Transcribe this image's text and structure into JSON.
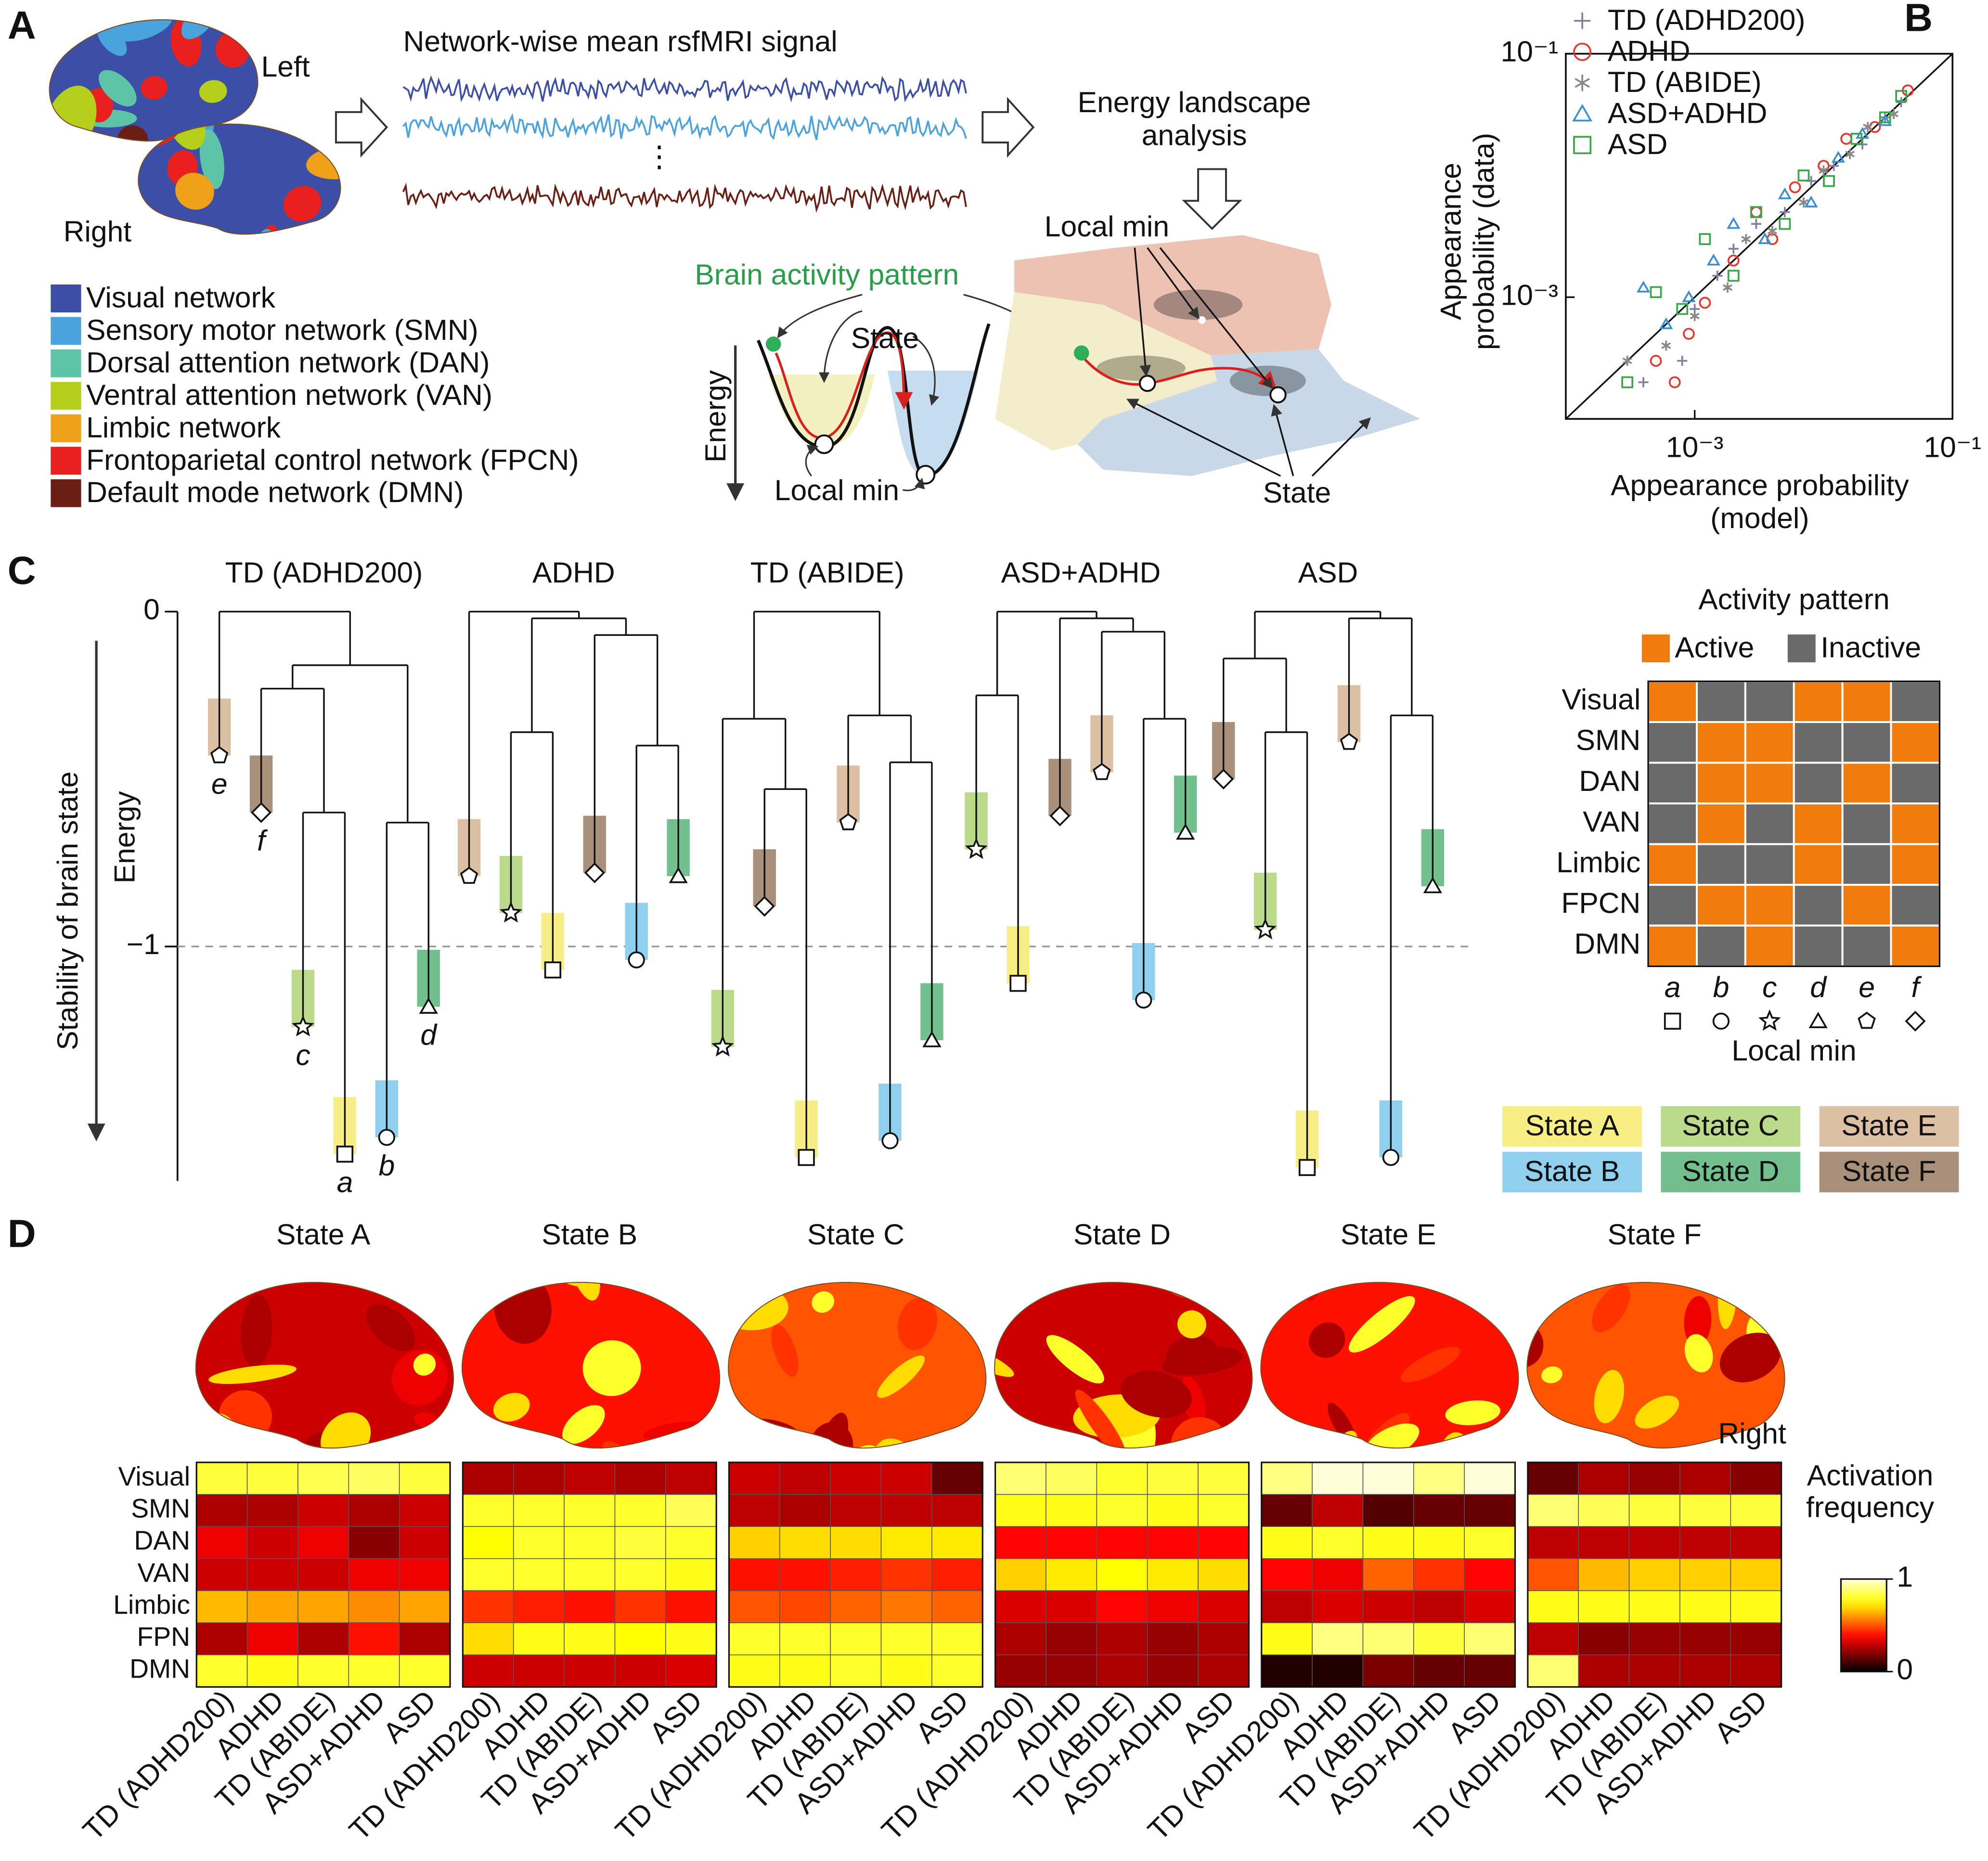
{
  "panel_labels": [
    "A",
    "B",
    "C",
    "D"
  ],
  "panel_a": {
    "hemispheres": [
      "Left",
      "Right"
    ],
    "signal_title": "Network-wise mean rsfMRI signal",
    "analysis": [
      "Energy landscape",
      "analysis"
    ],
    "pattern_label": "Brain activity pattern",
    "local_min": [
      "Local min",
      "Local min"
    ],
    "state": [
      "State",
      "State"
    ],
    "energy_label": "Energy",
    "networks": [
      {
        "name": "Visual network",
        "color": "#3c4fa6"
      },
      {
        "name": "Sensory motor network (SMN)",
        "color": "#4aa3dc"
      },
      {
        "name": "Dorsal attention network (DAN)",
        "color": "#5ec4a8"
      },
      {
        "name": "Ventral attention network (VAN)",
        "color": "#b5cf1d"
      },
      {
        "name": "Limbic network",
        "color": "#f0a11a"
      },
      {
        "name": "Frontoparietal control network (FPCN)",
        "color": "#e8201e"
      },
      {
        "name": "Default mode network (DMN)",
        "color": "#6b1e14"
      }
    ]
  },
  "chart_data": [
    {
      "type": "scatter",
      "log_x": true,
      "log_y": true,
      "legend": "upper left",
      "xlabel": [
        "Appearance probability",
        "(model)"
      ],
      "ylabel": [
        "Appearance",
        "probability (data)"
      ],
      "xlim": [
        0.0001,
        0.1
      ],
      "ylim": [
        0.0001,
        0.1
      ],
      "xticks": [
        {
          "value": 0.001,
          "label": "10⁻³"
        },
        {
          "value": 0.1,
          "label": "10⁻¹"
        }
      ],
      "yticks": [
        {
          "value": 0.001,
          "label": "10⁻³"
        },
        {
          "value": 0.1,
          "label": "10⁻¹"
        }
      ],
      "series": [
        {
          "name": "TD (ADHD200)",
          "color": "#8080a0",
          "marker": "plus",
          "x": [
            0.0004,
            0.0008,
            0.001,
            0.0015,
            0.002,
            0.003,
            0.005,
            0.008,
            0.012,
            0.02,
            0.03,
            0.04
          ],
          "values": [
            0.0002,
            0.0003,
            0.0008,
            0.0015,
            0.0025,
            0.004,
            0.005,
            0.009,
            0.012,
            0.018,
            0.03,
            0.04
          ]
        },
        {
          "name": "ADHD",
          "color": "#e8372c",
          "marker": "circle",
          "x": [
            0.0005,
            0.0007,
            0.0009,
            0.0012,
            0.002,
            0.003,
            0.004,
            0.006,
            0.01,
            0.015,
            0.025,
            0.045
          ],
          "values": [
            0.0003,
            0.0002,
            0.0005,
            0.0009,
            0.002,
            0.005,
            0.003,
            0.008,
            0.012,
            0.02,
            0.025,
            0.05
          ]
        },
        {
          "name": "TD (ABIDE)",
          "color": "#888888",
          "marker": "asterisk",
          "x": [
            0.0003,
            0.0006,
            0.001,
            0.0018,
            0.0025,
            0.004,
            0.007,
            0.01,
            0.016,
            0.022,
            0.035
          ],
          "values": [
            0.0003,
            0.0004,
            0.0007,
            0.0012,
            0.003,
            0.0035,
            0.006,
            0.011,
            0.015,
            0.025,
            0.032
          ]
        },
        {
          "name": "ASD+ADHD",
          "color": "#3a8fd0",
          "marker": "triangle",
          "x": [
            0.0004,
            0.0006,
            0.0009,
            0.0014,
            0.002,
            0.0035,
            0.005,
            0.008,
            0.013,
            0.02,
            0.03
          ],
          "values": [
            0.0012,
            0.0006,
            0.001,
            0.002,
            0.004,
            0.003,
            0.007,
            0.006,
            0.014,
            0.022,
            0.028
          ]
        },
        {
          "name": "ASD",
          "color": "#3aa84a",
          "marker": "square",
          "x": [
            0.0003,
            0.0005,
            0.0008,
            0.0012,
            0.002,
            0.003,
            0.005,
            0.007,
            0.011,
            0.018,
            0.03,
            0.04
          ],
          "values": [
            0.0002,
            0.0011,
            0.0008,
            0.003,
            0.0015,
            0.005,
            0.004,
            0.01,
            0.009,
            0.02,
            0.03,
            0.045
          ]
        }
      ]
    },
    {
      "type": "dendrogram",
      "ylabel": "Energy",
      "side_label": "Stability of brain state",
      "ylim": [
        -1.7,
        0
      ],
      "yticks": [
        0,
        {
          "value": -1,
          "label": "−1"
        }
      ],
      "refline": -1,
      "states": [
        {
          "name": "State A",
          "color": "#f7ee86"
        },
        {
          "name": "State B",
          "color": "#8fd0ef"
        },
        {
          "name": "State C",
          "color": "#bcda8c"
        },
        {
          "name": "State D",
          "color": "#72c08e"
        },
        {
          "name": "State E",
          "color": "#dcc0a4"
        },
        {
          "name": "State F",
          "color": "#a8907a"
        }
      ],
      "groups": [
        {
          "name": "TD (ADHD200)",
          "show_min_labels": true,
          "leaves": [
            {
              "min": "e",
              "energy": -0.43
            },
            {
              "min": "f",
              "energy": -0.6
            },
            {
              "min": "c",
              "energy": -1.24
            },
            {
              "min": "a",
              "energy": -1.62
            },
            {
              "min": "b",
              "energy": -1.57
            },
            {
              "min": "d",
              "energy": -1.18
            }
          ],
          "merges": [
            {
              "children": [
                2,
                3
              ],
              "energy": -0.6
            },
            {
              "children": [
                4,
                5
              ],
              "energy": -0.63
            },
            {
              "children": [
                1,
                6
              ],
              "energy": -0.23
            },
            {
              "children": [
                8,
                7
              ],
              "energy": -0.16
            },
            {
              "children": [
                0,
                9
              ],
              "energy": 0
            }
          ]
        },
        {
          "name": "ADHD",
          "show_min_labels": false,
          "leaves": [
            {
              "min": "e",
              "energy": -0.79
            },
            {
              "min": "c",
              "energy": -0.9
            },
            {
              "min": "a",
              "energy": -1.07
            },
            {
              "min": "f",
              "energy": -0.78
            },
            {
              "min": "b",
              "energy": -1.04
            },
            {
              "min": "d",
              "energy": -0.79
            }
          ],
          "merges": [
            {
              "children": [
                1,
                2
              ],
              "energy": -0.36
            },
            {
              "children": [
                4,
                5
              ],
              "energy": -0.4
            },
            {
              "children": [
                3,
                7
              ],
              "energy": -0.07
            },
            {
              "children": [
                6,
                8
              ],
              "energy": -0.02
            },
            {
              "children": [
                0,
                9
              ],
              "energy": 0
            }
          ]
        },
        {
          "name": "TD (ABIDE)",
          "show_min_labels": false,
          "leaves": [
            {
              "min": "c",
              "energy": -1.3
            },
            {
              "min": "f",
              "energy": -0.88
            },
            {
              "min": "a",
              "energy": -1.63
            },
            {
              "min": "e",
              "energy": -0.63
            },
            {
              "min": "b",
              "energy": -1.58
            },
            {
              "min": "d",
              "energy": -1.28
            }
          ],
          "merges": [
            {
              "children": [
                1,
                2
              ],
              "energy": -0.53
            },
            {
              "children": [
                0,
                6
              ],
              "energy": -0.32
            },
            {
              "children": [
                4,
                5
              ],
              "energy": -0.45
            },
            {
              "children": [
                3,
                8
              ],
              "energy": -0.31
            },
            {
              "children": [
                7,
                9
              ],
              "energy": 0
            }
          ]
        },
        {
          "name": "ASD+ADHD",
          "show_min_labels": false,
          "leaves": [
            {
              "min": "c",
              "energy": -0.71
            },
            {
              "min": "a",
              "energy": -1.11
            },
            {
              "min": "f",
              "energy": -0.61
            },
            {
              "min": "e",
              "energy": -0.48
            },
            {
              "min": "b",
              "energy": -1.16
            },
            {
              "min": "d",
              "energy": -0.66
            }
          ],
          "merges": [
            {
              "children": [
                0,
                1
              ],
              "energy": -0.25
            },
            {
              "children": [
                4,
                5
              ],
              "energy": -0.32
            },
            {
              "children": [
                3,
                7
              ],
              "energy": -0.06
            },
            {
              "children": [
                2,
                8
              ],
              "energy": -0.02
            },
            {
              "children": [
                6,
                9
              ],
              "energy": 0
            }
          ]
        },
        {
          "name": "ASD",
          "show_min_labels": false,
          "leaves": [
            {
              "min": "f",
              "energy": -0.5
            },
            {
              "min": "c",
              "energy": -0.95
            },
            {
              "min": "a",
              "energy": -1.66
            },
            {
              "min": "e",
              "energy": -0.39
            },
            {
              "min": "b",
              "energy": -1.63
            },
            {
              "min": "d",
              "energy": -0.82
            }
          ],
          "merges": [
            {
              "children": [
                1,
                2
              ],
              "energy": -0.36
            },
            {
              "children": [
                0,
                6
              ],
              "energy": -0.14
            },
            {
              "children": [
                4,
                5
              ],
              "energy": -0.31
            },
            {
              "children": [
                3,
                8
              ],
              "energy": -0.02
            },
            {
              "children": [
                7,
                9
              ],
              "energy": 0
            }
          ]
        }
      ]
    },
    {
      "type": "matrix",
      "title": "Activity pattern",
      "xlabel": "Local min",
      "legend": [
        {
          "name": "Active",
          "color": "#f07c0e"
        },
        {
          "name": "Inactive",
          "color": "#6a6a6a"
        }
      ],
      "rows": [
        "Visual",
        "SMN",
        "DAN",
        "VAN",
        "Limbic",
        "FPCN",
        "DMN"
      ],
      "columns": [
        "a",
        "b",
        "c",
        "d",
        "e",
        "f"
      ],
      "column_markers": [
        "square",
        "circle",
        "star",
        "triangle",
        "pentagon",
        "diamond"
      ],
      "values": [
        [
          1,
          0,
          0,
          1,
          1,
          0
        ],
        [
          0,
          1,
          1,
          0,
          0,
          1
        ],
        [
          0,
          1,
          1,
          0,
          1,
          0
        ],
        [
          0,
          1,
          0,
          1,
          0,
          1
        ],
        [
          1,
          0,
          0,
          1,
          0,
          1
        ],
        [
          0,
          1,
          1,
          0,
          1,
          0
        ],
        [
          1,
          0,
          1,
          0,
          0,
          1
        ]
      ]
    },
    {
      "type": "heatmap",
      "colormap": "hot",
      "states": [
        "State A",
        "State B",
        "State C",
        "State D",
        "State E",
        "State F"
      ],
      "side_label": "Right",
      "rows": [
        "Visual",
        "SMN",
        "DAN",
        "VAN",
        "Limbic",
        "FPN",
        "DMN"
      ],
      "columns": [
        "TD (ADHD200)",
        "ADHD",
        "TD (ABIDE)",
        "ASD+ADHD",
        "ASD"
      ],
      "colorbar_label": [
        "Activation",
        "frequency"
      ],
      "clim": [
        0,
        1
      ],
      "cticks": [
        1,
        0
      ],
      "values": [
        [
          [
            0.82,
            0.82,
            0.84,
            0.86,
            0.82
          ],
          [
            0.25,
            0.25,
            0.3,
            0.25,
            0.3
          ],
          [
            0.35,
            0.3,
            0.35,
            0.2,
            0.3
          ],
          [
            0.3,
            0.3,
            0.3,
            0.35,
            0.35
          ],
          [
            0.65,
            0.62,
            0.62,
            0.58,
            0.62
          ],
          [
            0.25,
            0.35,
            0.25,
            0.4,
            0.25
          ],
          [
            0.8,
            0.78,
            0.8,
            0.8,
            0.8
          ]
        ],
        [
          [
            0.25,
            0.25,
            0.28,
            0.25,
            0.28
          ],
          [
            0.8,
            0.8,
            0.8,
            0.8,
            0.85
          ],
          [
            0.75,
            0.8,
            0.8,
            0.82,
            0.8
          ],
          [
            0.8,
            0.8,
            0.8,
            0.8,
            0.78
          ],
          [
            0.45,
            0.42,
            0.4,
            0.45,
            0.4
          ],
          [
            0.7,
            0.78,
            0.78,
            0.75,
            0.78
          ],
          [
            0.3,
            0.3,
            0.3,
            0.3,
            0.32
          ]
        ],
        [
          [
            0.3,
            0.28,
            0.3,
            0.3,
            0.15
          ],
          [
            0.28,
            0.25,
            0.28,
            0.28,
            0.28
          ],
          [
            0.68,
            0.7,
            0.7,
            0.72,
            0.72
          ],
          [
            0.4,
            0.4,
            0.42,
            0.45,
            0.42
          ],
          [
            0.5,
            0.48,
            0.52,
            0.55,
            0.52
          ],
          [
            0.8,
            0.8,
            0.8,
            0.8,
            0.8
          ],
          [
            0.78,
            0.78,
            0.8,
            0.78,
            0.8
          ]
        ],
        [
          [
            0.88,
            0.86,
            0.8,
            0.82,
            0.82
          ],
          [
            0.78,
            0.78,
            0.8,
            0.78,
            0.8
          ],
          [
            0.38,
            0.38,
            0.38,
            0.38,
            0.38
          ],
          [
            0.68,
            0.72,
            0.75,
            0.72,
            0.7
          ],
          [
            0.32,
            0.32,
            0.38,
            0.35,
            0.32
          ],
          [
            0.25,
            0.22,
            0.25,
            0.22,
            0.25
          ],
          [
            0.22,
            0.22,
            0.25,
            0.22,
            0.25
          ]
        ],
        [
          [
            0.9,
            1,
            1,
            0.9,
            1
          ],
          [
            0.15,
            0.28,
            0.12,
            0.15,
            0.15
          ],
          [
            0.78,
            0.8,
            0.78,
            0.78,
            0.8
          ],
          [
            0.38,
            0.35,
            0.52,
            0.45,
            0.38
          ],
          [
            0.28,
            0.32,
            0.3,
            0.28,
            0.32
          ],
          [
            0.78,
            0.9,
            0.88,
            0.82,
            0.88
          ],
          [
            0.05,
            0.05,
            0.18,
            0.15,
            0.15
          ]
        ],
        [
          [
            0.15,
            0.25,
            0.22,
            0.25,
            0.2
          ],
          [
            0.88,
            0.85,
            0.82,
            0.82,
            0.82
          ],
          [
            0.28,
            0.28,
            0.28,
            0.28,
            0.28
          ],
          [
            0.5,
            0.65,
            0.68,
            0.68,
            0.68
          ],
          [
            0.78,
            0.78,
            0.78,
            0.78,
            0.78
          ],
          [
            0.28,
            0.2,
            0.22,
            0.22,
            0.22
          ],
          [
            0.88,
            0.25,
            0.25,
            0.25,
            0.25
          ]
        ]
      ]
    }
  ]
}
